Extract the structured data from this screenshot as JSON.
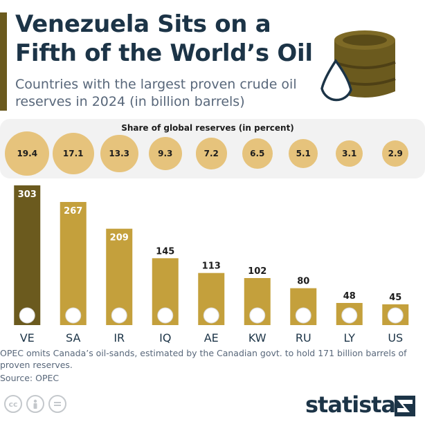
{
  "title": "Venezuela Sits on a Fifth of the World’s Oil",
  "subtitle": "Countries with the largest proven crude oil reserves in 2024 (in billion barrels)",
  "share_panel": {
    "title": "Share of global reserves (in percent)",
    "values": [
      "19.4",
      "17.1",
      "13.3",
      "9.3",
      "7.2",
      "6.5",
      "5.1",
      "3.1",
      "2.9"
    ]
  },
  "chart_data": {
    "type": "bar",
    "categories": [
      "VE",
      "SA",
      "IR",
      "IQ",
      "AE",
      "KW",
      "RU",
      "LY",
      "US"
    ],
    "values": [
      303,
      267,
      209,
      145,
      113,
      102,
      80,
      48,
      45
    ],
    "shares": [
      19.4,
      17.1,
      13.3,
      9.3,
      7.2,
      6.5,
      5.1,
      3.1,
      2.9
    ],
    "title": "Venezuela Sits on a Fifth of the World’s Oil",
    "subtitle": "Countries with the largest proven crude oil reserves in 2024 (in billion barrels)",
    "xlabel": "",
    "ylabel": "",
    "ylim": [
      0,
      303
    ],
    "grid": false,
    "colors": {
      "highlight_bar": "#6b5a1e",
      "bar": "#c4a03c",
      "share_circle": "#e6c37c",
      "title": "#1c3447",
      "text_muted": "#58677a"
    }
  },
  "footer": {
    "note": "OPEC omits Canada’s oil-sands, estimated by the Canadian govt. to hold 171 billion barrels of proven reserves.",
    "source": "Source: OPEC",
    "brand": "statista"
  },
  "icons": {
    "barrel": "oil-barrel-icon",
    "cc": [
      "cc-icon",
      "attribution-icon",
      "no-derivatives-icon"
    ]
  }
}
